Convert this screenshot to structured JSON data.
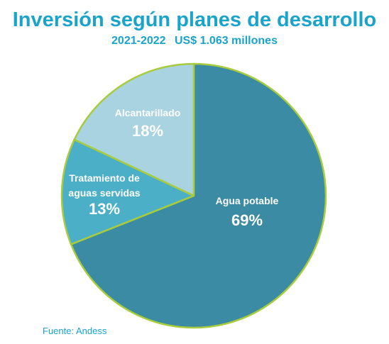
{
  "title": "Inversión según planes de desarrollo",
  "subtitle_period": "2021-2022",
  "subtitle_amount": "US$ 1.063 millones",
  "source": "Fuente: Andess",
  "colors": {
    "title": "#1aa3cb",
    "slice_border": "#a8cc3c"
  },
  "chart_data": {
    "type": "pie",
    "title": "Inversión según planes de desarrollo",
    "subtitle": "2021-2022  US$ 1.063 millones",
    "slices": [
      {
        "label": "Agua potable",
        "value": 69,
        "value_label": "69%",
        "color": "#3a8ba3"
      },
      {
        "label": "Tratamiento de aguas servidas",
        "label_lines": [
          "Tratamiento de",
          "aguas servidas"
        ],
        "value": 13,
        "value_label": "13%",
        "color": "#4bafc8"
      },
      {
        "label": "Alcantarillado",
        "value": 18,
        "value_label": "18%",
        "color": "#a9d3e0"
      }
    ],
    "start_angle_deg": 0,
    "direction": "clockwise",
    "legend": "none"
  }
}
